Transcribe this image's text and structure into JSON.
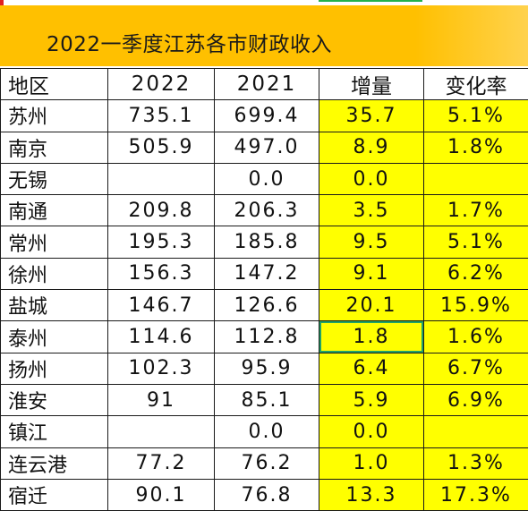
{
  "banner": {
    "title": "2022一季度江苏各市财政收入"
  },
  "table": {
    "columns": [
      "地区",
      "2022",
      "2021",
      "增量",
      "变化率"
    ],
    "rows": [
      {
        "city": "苏州",
        "y2022": "735.1",
        "y2021": "699.4",
        "delta": "35.7",
        "rate": "5.1%"
      },
      {
        "city": "南京",
        "y2022": "505.9",
        "y2021": "497.0",
        "delta": "8.9",
        "rate": "1.8%"
      },
      {
        "city": "无锡",
        "y2022": "",
        "y2021": "0.0",
        "delta": "0.0",
        "rate": ""
      },
      {
        "city": "南通",
        "y2022": "209.8",
        "y2021": "206.3",
        "delta": "3.5",
        "rate": "1.7%"
      },
      {
        "city": "常州",
        "y2022": "195.3",
        "y2021": "185.8",
        "delta": "9.5",
        "rate": "5.1%"
      },
      {
        "city": "徐州",
        "y2022": "156.3",
        "y2021": "147.2",
        "delta": "9.1",
        "rate": "6.2%"
      },
      {
        "city": "盐城",
        "y2022": "146.7",
        "y2021": "126.6",
        "delta": "20.1",
        "rate": "15.9%"
      },
      {
        "city": "泰州",
        "y2022": "114.6",
        "y2021": "112.8",
        "delta": "1.8",
        "rate": "1.6%"
      },
      {
        "city": "扬州",
        "y2022": "102.3",
        "y2021": "95.9",
        "delta": "6.4",
        "rate": "6.7%"
      },
      {
        "city": "淮安",
        "y2022": "91",
        "y2021": "85.1",
        "delta": "5.9",
        "rate": "6.9%"
      },
      {
        "city": "镇江",
        "y2022": "",
        "y2021": "0.0",
        "delta": "0.0",
        "rate": ""
      },
      {
        "city": "连云港",
        "y2022": "77.2",
        "y2021": "76.2",
        "delta": "1.0",
        "rate": "1.3%"
      },
      {
        "city": "宿迁",
        "y2022": "90.1",
        "y2021": "76.8",
        "delta": "13.3",
        "rate": "17.3%"
      }
    ]
  },
  "colors": {
    "banner": "#ffc000",
    "highlight": "#ffff00",
    "selection": "#21a366"
  }
}
